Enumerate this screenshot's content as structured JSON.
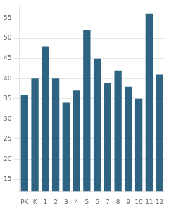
{
  "chart_data": {
    "type": "bar",
    "categories": [
      "PK",
      "K",
      "1",
      "2",
      "3",
      "4",
      "5",
      "6",
      "7",
      "8",
      "9",
      "10",
      "11",
      "12"
    ],
    "values": [
      36,
      40,
      48,
      40,
      34,
      37,
      52,
      45,
      39,
      42,
      38,
      35,
      56,
      41
    ],
    "color": "#2e6482",
    "ylim": [
      12,
      58
    ],
    "yticks": [
      15,
      20,
      25,
      30,
      35,
      40,
      45,
      50,
      55
    ],
    "grid": true
  }
}
